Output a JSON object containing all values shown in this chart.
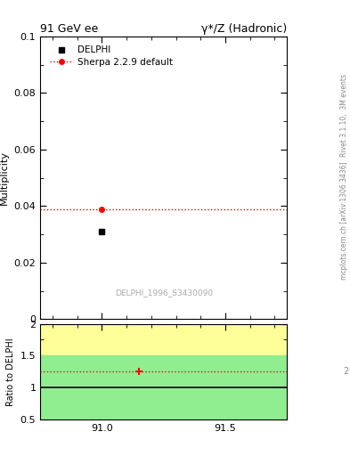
{
  "title_left": "91 GeV ee",
  "title_right": "γ*/Z (Hadronic)",
  "ylabel_main": "Multiplicity",
  "ylabel_ratio": "Ratio to DELPHI",
  "right_label_1": "Rivet 3.1.10,  3M events",
  "right_label_2": "mcplots.cern.ch [arXiv:1306.3436]",
  "watermark": "DELPHI_1996_S3430090",
  "xlim": [
    90.75,
    91.75
  ],
  "xticks": [
    91.0,
    91.5
  ],
  "ylim_main": [
    0.0,
    0.1
  ],
  "yticks_main": [
    0.0,
    0.02,
    0.04,
    0.06,
    0.08,
    0.1
  ],
  "ylim_ratio": [
    0.5,
    2.0
  ],
  "yticks_ratio": [
    0.5,
    1.0,
    1.5,
    2.0
  ],
  "data_x": 91.0,
  "data_y": 0.031,
  "data_yerr": 0.001,
  "sherpa_x": 91.0,
  "sherpa_y": 0.039,
  "ratio_sherpa_x": 91.15,
  "ratio_sherpa_y": 1.26,
  "green_band_lo": 0.5,
  "green_band_hi": 1.5,
  "yellow_band_lo": 0.5,
  "yellow_band_hi": 2.0,
  "data_color": "#000000",
  "sherpa_color": "#ff0000",
  "green_color": "#90ee90",
  "yellow_color": "#ffff99",
  "legend_data_label": "DELPHI",
  "legend_sherpa_label": "Sherpa 2.2.9 default"
}
